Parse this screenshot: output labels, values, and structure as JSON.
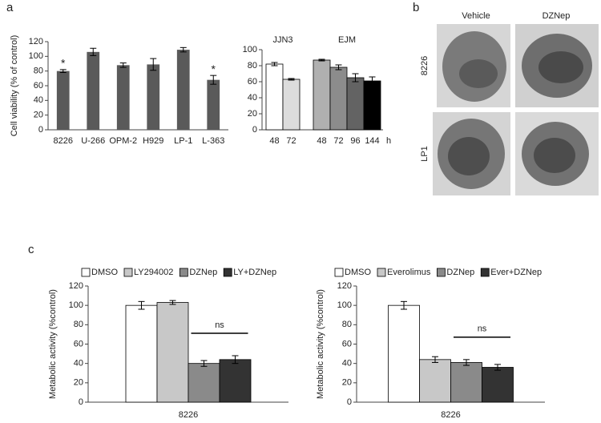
{
  "panel_labels": [
    "a",
    "b",
    "c"
  ],
  "images": {
    "columns": [
      "Vehicle",
      "DZNep"
    ],
    "rows": [
      "8226",
      "LP1"
    ]
  },
  "chart_data": [
    {
      "type": "bar",
      "ylabel": "Cell viability (% of control)",
      "categories": [
        "8226",
        "U-266",
        "OPM-2",
        "H929",
        "LP-1",
        "L-363"
      ],
      "values": [
        80,
        106,
        88,
        89,
        109,
        68
      ],
      "errors": [
        2,
        5,
        3,
        8,
        3,
        6
      ],
      "color": "#5a5a5a",
      "annotations": [
        {
          "category": "8226",
          "text": "*"
        },
        {
          "category": "L-363",
          "text": "*"
        }
      ],
      "ylim": [
        0,
        120
      ],
      "yticks": [
        0,
        20,
        40,
        60,
        80,
        100,
        120
      ]
    },
    {
      "type": "bar",
      "x_unit": "h",
      "groups": [
        {
          "label": "JJN3",
          "categories": [
            "48",
            "72"
          ],
          "values": [
            82,
            63
          ],
          "errors": [
            2,
            1
          ],
          "colors": [
            "#ffffff",
            "#dcdcdc"
          ]
        },
        {
          "label": "EJM",
          "categories": [
            "48",
            "72",
            "96",
            "144"
          ],
          "values": [
            87,
            78,
            65,
            61
          ],
          "errors": [
            1,
            3,
            5,
            5
          ],
          "colors": [
            "#b0b0b0",
            "#8c8c8c",
            "#636363",
            "#000000"
          ]
        }
      ],
      "ylim": [
        0,
        100
      ],
      "yticks": [
        0,
        20,
        40,
        60,
        80,
        100
      ]
    },
    {
      "type": "bar",
      "ylabel": "Metabolic activity (%control)",
      "categories": [
        "8226"
      ],
      "series": [
        {
          "name": "DMSO",
          "color": "#ffffff",
          "values": [
            100
          ],
          "errors": [
            4
          ]
        },
        {
          "name": "LY294002",
          "color": "#c8c8c8",
          "values": [
            103
          ],
          "errors": [
            2
          ]
        },
        {
          "name": "DZNep",
          "color": "#8a8a8a",
          "values": [
            40
          ],
          "errors": [
            3
          ]
        },
        {
          "name": "LY+DZNep",
          "color": "#333333",
          "values": [
            44
          ],
          "errors": [
            4
          ]
        }
      ],
      "annotation": "ns",
      "ylim": [
        0,
        120
      ],
      "yticks": [
        0,
        20,
        40,
        60,
        80,
        100,
        120
      ]
    },
    {
      "type": "bar",
      "ylabel": "Metabolic activity (%control)",
      "categories": [
        "8226"
      ],
      "series": [
        {
          "name": "DMSO",
          "color": "#ffffff",
          "values": [
            100
          ],
          "errors": [
            4
          ]
        },
        {
          "name": "Everolimus",
          "color": "#c8c8c8",
          "values": [
            44
          ],
          "errors": [
            3
          ]
        },
        {
          "name": "DZNep",
          "color": "#8a8a8a",
          "values": [
            41
          ],
          "errors": [
            3
          ]
        },
        {
          "name": "Ever+DZNep",
          "color": "#333333",
          "values": [
            36
          ],
          "errors": [
            3
          ]
        }
      ],
      "annotation": "ns",
      "ylim": [
        0,
        120
      ],
      "yticks": [
        0,
        20,
        40,
        60,
        80,
        100,
        120
      ]
    }
  ]
}
